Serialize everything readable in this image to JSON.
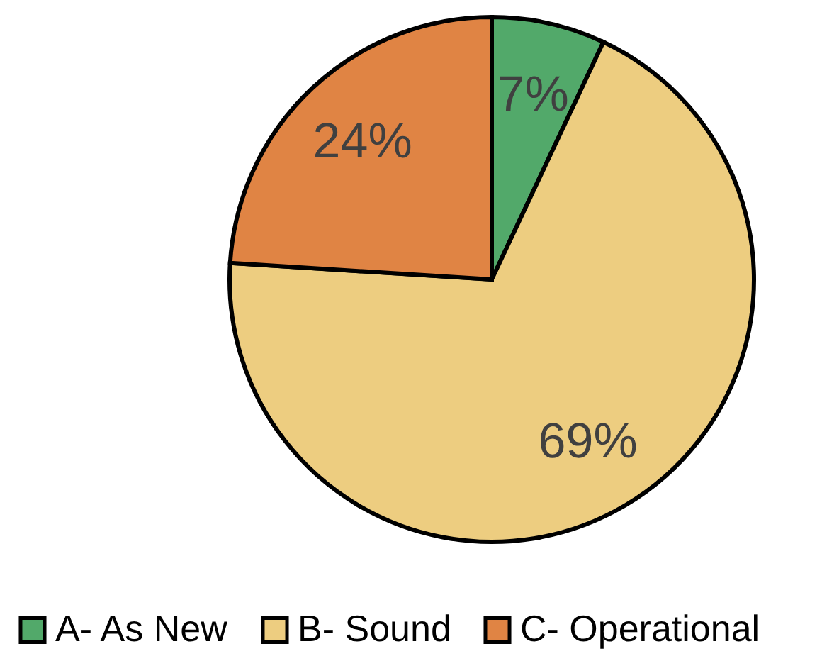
{
  "chart_data": {
    "type": "pie",
    "categories": [
      "A- As New",
      "B- Sound",
      "C- Operational"
    ],
    "values": [
      7,
      69,
      24
    ],
    "colors": [
      "#52a96a",
      "#edcd80",
      "#e08444"
    ],
    "value_labels": [
      "7%",
      "69%",
      "24%"
    ],
    "legend": "bottom"
  }
}
